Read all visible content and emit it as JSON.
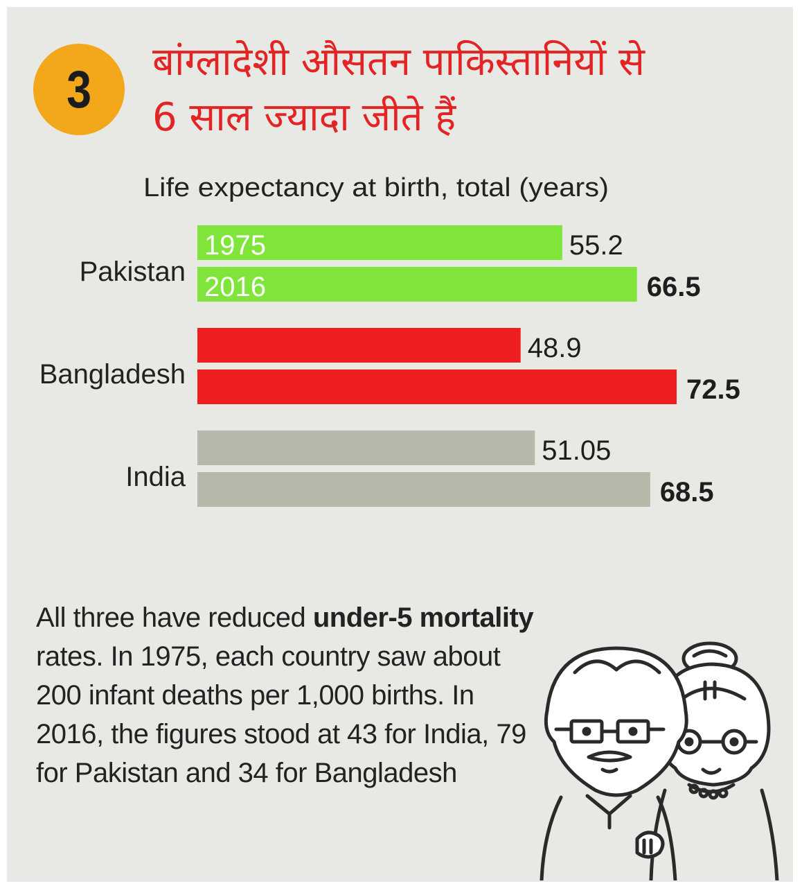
{
  "badge": {
    "number": "3"
  },
  "headline": {
    "line1": "बांग्लादेशी औसतन पाकिस्तानियों से",
    "line2": "6 साल ज्यादा जीते हैं"
  },
  "description": {
    "part1": "All three have reduced ",
    "bold": "under-5 mortality",
    "part2": " rates. In 1975, each country saw about 200 infant deaths per 1,000 births. In 2016, the figures stood at 43 for India, 79 for Pakistan and 34 for Bangladesh"
  },
  "colors": {
    "background": "#e8e9e4",
    "badge": "#f3a81c",
    "headline": "#e32424",
    "pakistan": "#7fe53b",
    "bangladesh": "#f01f1f",
    "india": "#b4b9aa"
  },
  "illustration": {
    "icon": "elderly-couple-icon"
  },
  "chart_data": {
    "type": "bar",
    "orientation": "horizontal",
    "title": "Life expectancy at birth, total (years)",
    "categories": [
      "Pakistan",
      "Bangladesh",
      "India"
    ],
    "series": [
      {
        "name": "1975",
        "values": [
          55.2,
          48.9,
          51.05
        ],
        "labels": [
          "55.2",
          "48.9",
          "51.05"
        ]
      },
      {
        "name": "2016",
        "values": [
          66.5,
          72.5,
          68.5
        ],
        "labels": [
          "66.5",
          "72.5",
          "68.5"
        ]
      }
    ],
    "bar_colors": [
      "#7fe53b",
      "#f01f1f",
      "#b4b9aa"
    ],
    "xlim": [
      0,
      72.5
    ],
    "grid": false
  }
}
